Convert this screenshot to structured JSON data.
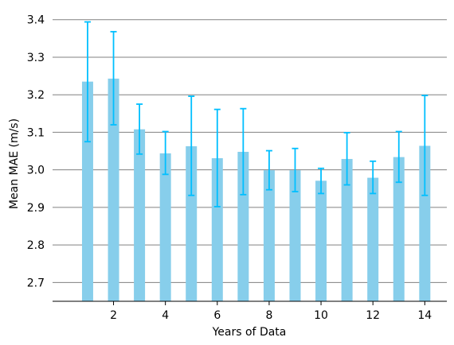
{
  "chart_data": {
    "type": "bar",
    "title": "",
    "xlabel": "Years of Data",
    "ylabel": "Mean MAE (m/s)",
    "x": [
      1,
      2,
      3,
      4,
      5,
      6,
      7,
      8,
      9,
      10,
      11,
      12,
      13,
      14
    ],
    "values": [
      3.235,
      3.243,
      3.108,
      3.044,
      3.063,
      3.031,
      3.048,
      2.999,
      2.999,
      2.971,
      3.029,
      2.979,
      3.034,
      3.064
    ],
    "error_low": [
      3.075,
      3.12,
      3.042,
      2.988,
      2.932,
      2.902,
      2.934,
      2.947,
      2.942,
      2.937,
      2.96,
      2.937,
      2.967,
      2.932
    ],
    "error_high": [
      3.394,
      3.368,
      3.175,
      3.102,
      3.196,
      3.161,
      3.163,
      3.051,
      3.057,
      3.004,
      3.099,
      3.023,
      3.102,
      3.198
    ],
    "xlim": [
      -0.35,
      14.85
    ],
    "ylim": [
      2.65,
      3.41
    ],
    "xticks": [
      "2",
      "4",
      "6",
      "8",
      "10",
      "12",
      "14"
    ],
    "xtick_values": [
      2,
      4,
      6,
      8,
      10,
      12,
      14
    ],
    "yticks": [
      "2.7",
      "2.8",
      "2.9",
      "3.0",
      "3.1",
      "3.2",
      "3.3",
      "3.4"
    ],
    "ytick_values": [
      2.7,
      2.8,
      2.9,
      3.0,
      3.1,
      3.2,
      3.3,
      3.4
    ],
    "grid": "horizontal",
    "legend": "none",
    "colors": {
      "bar": "#87ceeb",
      "error_bar": "#00bfff",
      "grid": "#808080",
      "axis": "#000000"
    }
  }
}
